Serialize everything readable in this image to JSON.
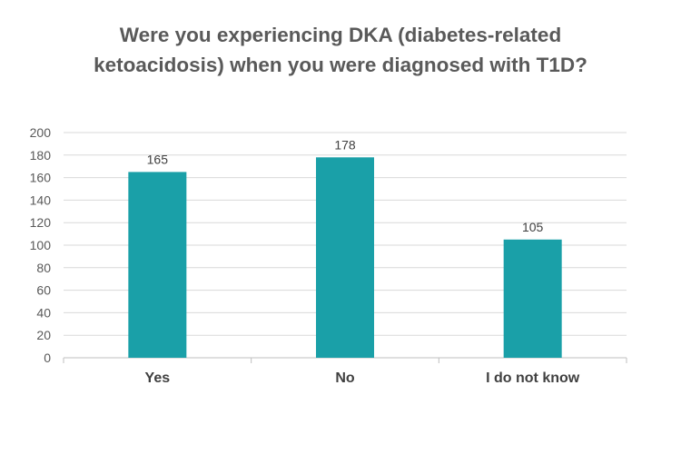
{
  "chart_data": {
    "type": "bar",
    "title_lines": [
      "Were you experiencing DKA (diabetes-related",
      "ketoacidosis) when you were diagnosed with T1D?"
    ],
    "categories": [
      "Yes",
      "No",
      "I do not know"
    ],
    "values": [
      165,
      178,
      105
    ],
    "data_labels": [
      "165",
      "178",
      "105"
    ],
    "ylim": [
      0,
      200
    ],
    "yticks": [
      0,
      20,
      40,
      60,
      80,
      100,
      120,
      140,
      160,
      180,
      200
    ],
    "xlabel": "",
    "ylabel": "",
    "grid": true,
    "legend": "none",
    "bar_color": "#1aa0a8",
    "grid_color": "#d9d9d9",
    "text_color": "#595959"
  }
}
